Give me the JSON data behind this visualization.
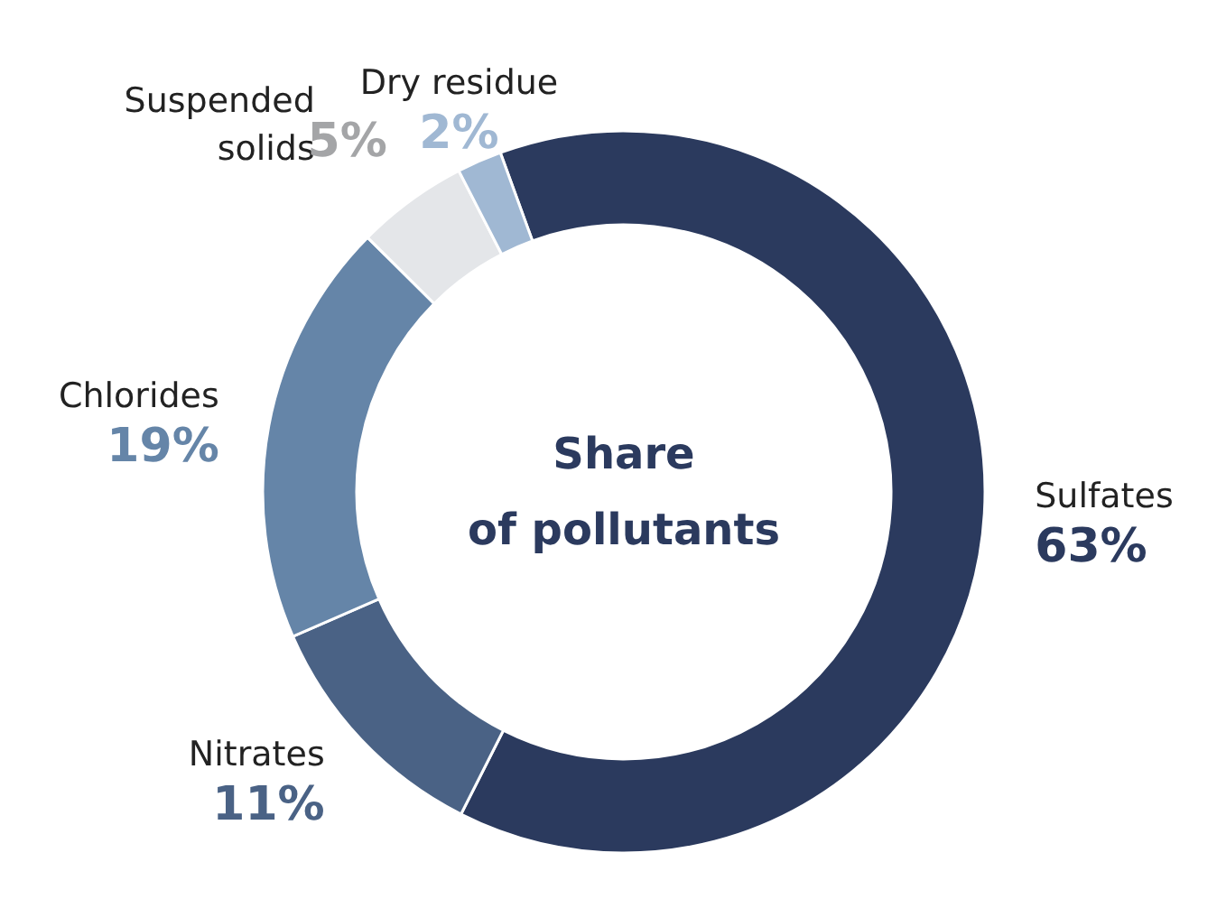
{
  "chart_data": {
    "type": "donut",
    "title": "Share\nof pollutants",
    "categories": [
      "Sulfates",
      "Nitrates",
      "Chlorides",
      "Suspended solids",
      "Dry residue"
    ],
    "values": [
      63,
      11,
      19,
      5,
      2
    ],
    "colors": [
      "#2b3a5e",
      "#4a6285",
      "#6585a8",
      "#e4e6e9",
      "#a0b8d3"
    ],
    "value_labels": [
      "63%",
      "11%",
      "19%",
      "5%",
      "2%"
    ]
  }
}
